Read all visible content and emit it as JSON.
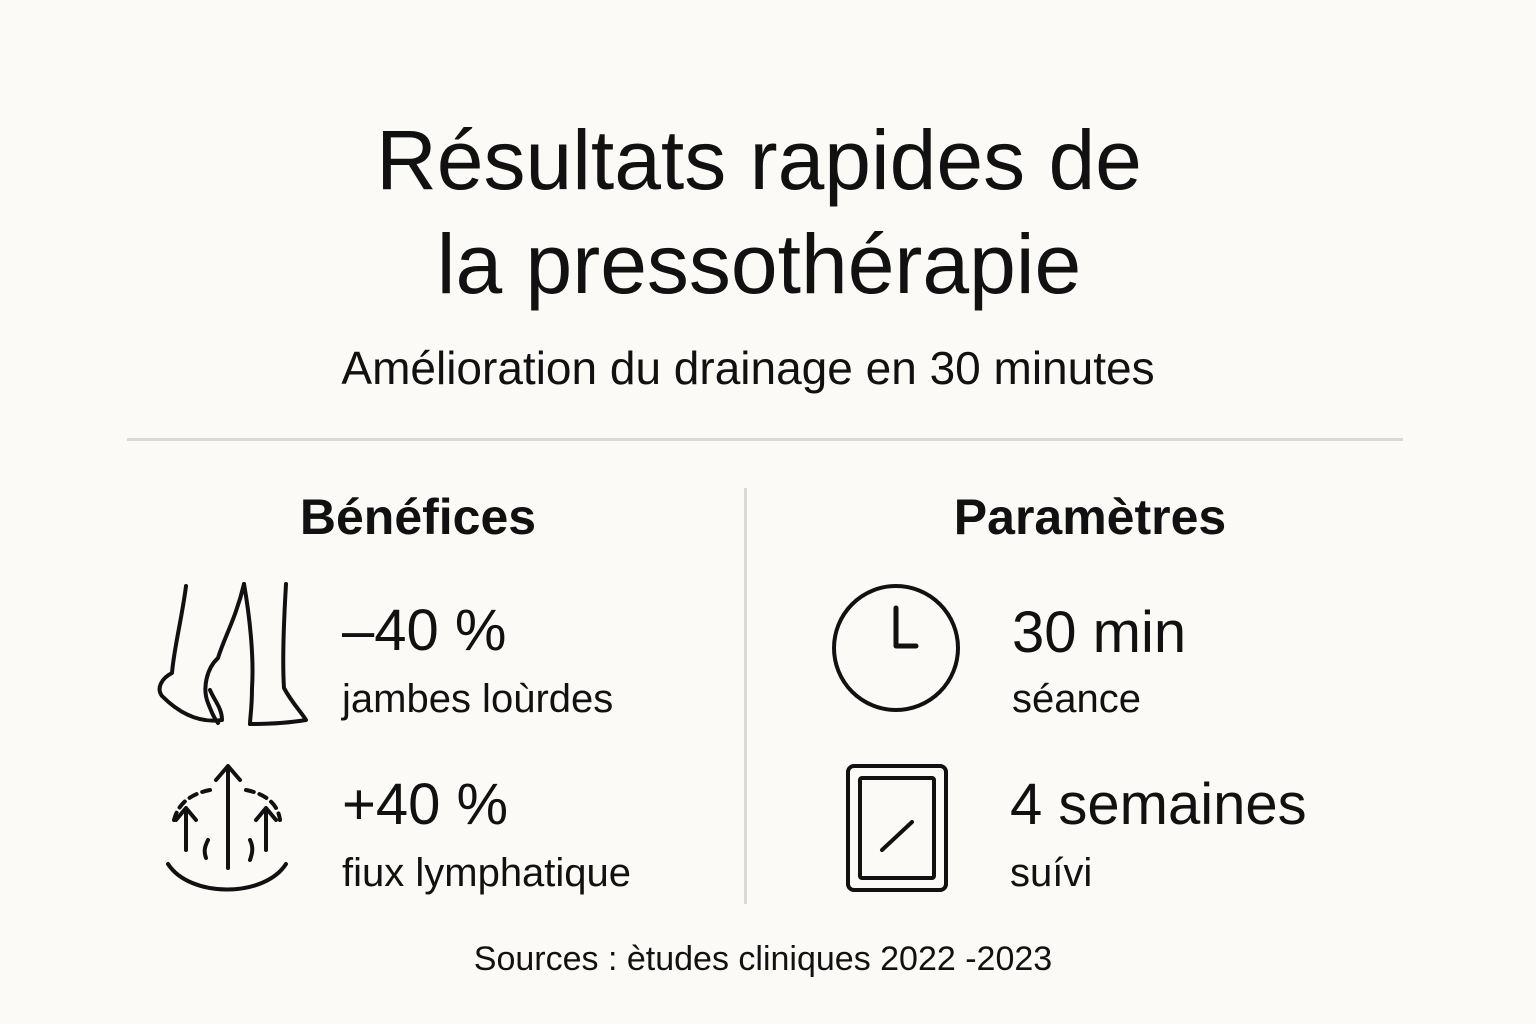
{
  "title": {
    "line1": "Résultats rapides de",
    "line2": "la pressothérapie"
  },
  "subtitle": "Amélioration du drainage en 30 minutes",
  "benefits": {
    "heading": "Bénéfices",
    "items": [
      {
        "icon": "legs-icon",
        "value": "–40 %",
        "label": "jambes loùrdes"
      },
      {
        "icon": "lymph-flow-icon",
        "value": "+40 %",
        "label": "fiux lymphatique"
      }
    ]
  },
  "parameters": {
    "heading": "Paramètres",
    "items": [
      {
        "icon": "clock-icon",
        "value": "30 min",
        "label": "séance"
      },
      {
        "icon": "tablet-icon",
        "value": "4 semaines",
        "label": "suívi"
      }
    ]
  },
  "footer": "Sources : ètudes cliniques 2022 -2023"
}
